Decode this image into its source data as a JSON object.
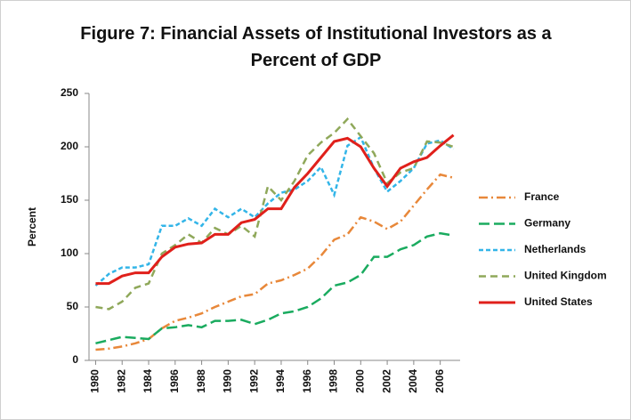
{
  "chart_data": {
    "type": "line",
    "title": "Figure 7: Financial Assets of Institutional Investors as a Percent of GDP",
    "y_label": "Percent",
    "x": [
      1980,
      1981,
      1982,
      1983,
      1984,
      1985,
      1986,
      1987,
      1988,
      1989,
      1990,
      1991,
      1992,
      1993,
      1994,
      1995,
      1996,
      1997,
      1998,
      1999,
      2000,
      2001,
      2002,
      2003,
      2004,
      2005,
      2006,
      2007
    ],
    "xlim": [
      1979.5,
      2007.5
    ],
    "xticks": [
      1980,
      1982,
      1984,
      1986,
      1988,
      1990,
      1992,
      1994,
      1996,
      1998,
      2000,
      2002,
      2004,
      2006
    ],
    "ylim": [
      0,
      250
    ],
    "yticks": [
      0,
      50,
      100,
      150,
      200,
      250
    ],
    "grid": false,
    "legend": "right",
    "series": [
      {
        "name": "France",
        "color": "#e8883a",
        "dash": "dashdot",
        "values": [
          10,
          11,
          13,
          16,
          20,
          30,
          37,
          40,
          44,
          50,
          55,
          60,
          62,
          72,
          75,
          80,
          86,
          98,
          113,
          118,
          134,
          130,
          123,
          130,
          145,
          160,
          174,
          171
        ]
      },
      {
        "name": "Germany",
        "color": "#1aab5f",
        "dash": "longdash",
        "values": [
          16,
          19,
          22,
          21,
          20,
          30,
          31,
          33,
          31,
          37,
          37,
          38,
          34,
          38,
          44,
          46,
          50,
          58,
          70,
          73,
          80,
          97,
          97,
          104,
          108,
          116,
          119,
          117
        ]
      },
      {
        "name": "Netherlands",
        "color": "#33b5e8",
        "dash": "shortdash",
        "values": [
          70,
          81,
          87,
          87,
          90,
          126,
          126,
          133,
          126,
          142,
          134,
          142,
          134,
          147,
          157,
          160,
          168,
          181,
          155,
          201,
          209,
          180,
          158,
          168,
          180,
          203,
          206,
          198
        ]
      },
      {
        "name": "United Kingdom",
        "color": "#8fa85a",
        "dash": "dash",
        "values": [
          50,
          48,
          55,
          68,
          72,
          100,
          108,
          118,
          110,
          124,
          118,
          126,
          116,
          163,
          150,
          168,
          192,
          204,
          213,
          226,
          210,
          194,
          166,
          176,
          180,
          205,
          204,
          200
        ]
      },
      {
        "name": "United States",
        "color": "#e0201b",
        "dash": "solid",
        "values": [
          72,
          72,
          79,
          82,
          82,
          97,
          106,
          109,
          110,
          118,
          118,
          129,
          132,
          142,
          142,
          162,
          175,
          190,
          205,
          208,
          200,
          180,
          163,
          180,
          186,
          190,
          201,
          211
        ]
      }
    ]
  }
}
